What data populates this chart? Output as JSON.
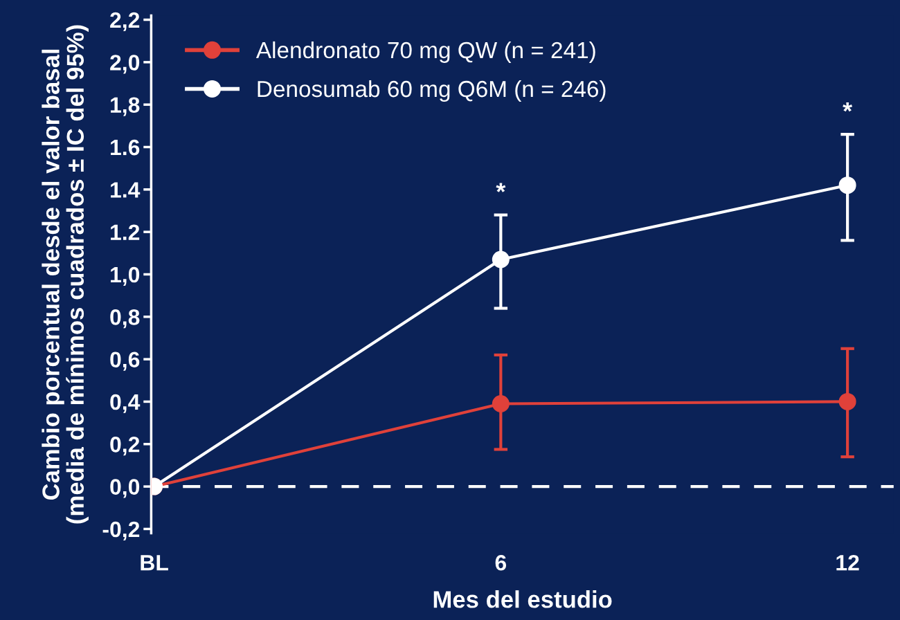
{
  "chart_data": {
    "type": "line",
    "xlabel": "Mes del estudio",
    "ylabel": "Cambio porcentual desde el valor basal\n(media de mínimos cuadrados ± IC del 95%)",
    "x": [
      0,
      6,
      12
    ],
    "series": [
      {
        "name": "Alendronato 70 mg QW (n = 241)",
        "color": "#e0413a",
        "values": [
          0,
          0.39,
          0.4
        ],
        "errors": [
          null,
          [
            0.175,
            0.62
          ],
          [
            0.14,
            0.65
          ]
        ]
      },
      {
        "name": "Denosumab 60 mg Q6M (n = 246)",
        "color": "#ffffff",
        "values": [
          0,
          1.07,
          1.42
        ],
        "errors": [
          null,
          [
            0.84,
            1.28
          ],
          [
            1.16,
            1.66
          ]
        ]
      }
    ],
    "xlim": [
      -0.05,
      12.8
    ],
    "xticks": [
      {
        "value": 0,
        "label": "BL"
      },
      6,
      12
    ],
    "ylim": [
      -0.22,
      2.22
    ],
    "yticks": [
      {
        "value": -0.2,
        "label": "-0,2"
      },
      {
        "value": 0,
        "label": "0,0"
      },
      {
        "value": 0.2,
        "label": "0,2"
      },
      {
        "value": 0.4,
        "label": "0,4"
      },
      {
        "value": 0.6,
        "label": "0,6"
      },
      {
        "value": 0.8,
        "label": "0,8"
      },
      {
        "value": 1.0,
        "label": "1,0"
      },
      {
        "value": 1.2,
        "label": "1.2"
      },
      {
        "value": 1.4,
        "label": "1.4"
      },
      {
        "value": 1.6,
        "label": "1.6"
      },
      {
        "value": 1.8,
        "label": "1,8"
      },
      {
        "value": 2.0,
        "label": "2,0"
      },
      {
        "value": 2.2,
        "label": "2,2"
      }
    ],
    "ref_lines": [
      {
        "axis": "y",
        "value": 0,
        "color": "#ffffff",
        "line_style": "dashed"
      }
    ],
    "annotations": [
      "*",
      "*"
    ],
    "marker": "circle",
    "line_style": "solid",
    "legend": "top left",
    "grid": false
  }
}
